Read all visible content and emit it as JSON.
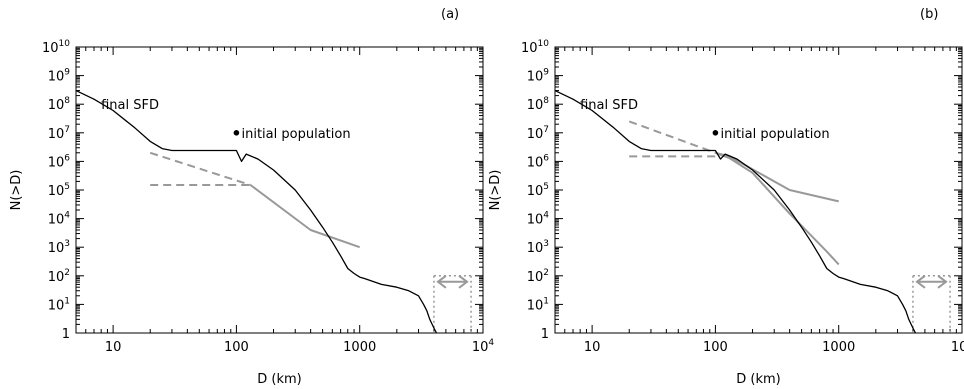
{
  "figure": {
    "colors": {
      "final": "#000000",
      "models": "#999999",
      "marker": "#000000"
    },
    "line_styles": [
      "solid-black",
      "solid-gray",
      "dashed-gray",
      "dotted-gray"
    ],
    "icon_names": [
      "double-arrow-icon",
      "point-marker-icon"
    ]
  },
  "chart_data": [
    {
      "type": "line",
      "panel_label": "(a)",
      "xlabel": "D (km)",
      "ylabel": "N(>D)",
      "xscale": "log",
      "yscale": "log",
      "xlim": [
        5,
        10000
      ],
      "ylim": [
        1,
        10000000000
      ],
      "x_ticklabels": [
        "10",
        "100",
        "1000",
        "10^4"
      ],
      "y_ticklabels": [
        "1",
        "10^1",
        "10^2",
        "10^3",
        "10^4",
        "10^5",
        "10^6",
        "10^7",
        "10^8",
        "10^9",
        "10^10"
      ],
      "grid": false,
      "annotations": [
        {
          "text": "final SFD",
          "x": 10,
          "y": 100000000
        },
        {
          "text": "initial population",
          "x": 110,
          "y": 10000000
        }
      ],
      "series": [
        {
          "style": "solid-black",
          "x": [
            5,
            7,
            10,
            15,
            20,
            25,
            30,
            50,
            80,
            100,
            110,
            120,
            150,
            200,
            300,
            400,
            500,
            600,
            700,
            800,
            900,
            1000,
            1100,
            1500,
            2000,
            2500,
            3000,
            3300,
            3500,
            3700,
            4000,
            4200
          ],
          "y": [
            300000000,
            150000000,
            60000000,
            15000000,
            5000000,
            2800000,
            2400000,
            2400000,
            2400000,
            2400000,
            1000000,
            1800000,
            1200000,
            500000,
            100000,
            20000,
            5000,
            1500,
            500,
            180,
            120,
            90,
            80,
            50,
            40,
            30,
            20,
            10,
            6,
            3,
            1.5,
            1
          ]
        },
        {
          "style": "solid-gray",
          "x": [
            130,
            400,
            1000
          ],
          "y": [
            150000,
            4000,
            1000
          ]
        },
        {
          "style": "dashed-gray",
          "x": [
            20,
            130
          ],
          "y": [
            2000000,
            150000
          ]
        },
        {
          "style": "dashed-gray",
          "x": [
            20,
            130
          ],
          "y": [
            150000,
            150000
          ]
        }
      ],
      "markers": [
        {
          "x": 100,
          "y": 10000000
        }
      ],
      "range_band": {
        "x": [
          4000,
          8000
        ],
        "y": [
          1,
          100
        ]
      }
    },
    {
      "type": "line",
      "panel_label": "(b)",
      "xlabel": "D (km)",
      "ylabel": "N(>D)",
      "xscale": "log",
      "yscale": "log",
      "xlim": [
        5,
        10000
      ],
      "ylim": [
        1,
        10000000000
      ],
      "x_ticklabels": [
        "10",
        "100",
        "1000",
        "10^4"
      ],
      "y_ticklabels": [
        "1",
        "10^1",
        "10^2",
        "10^3",
        "10^4",
        "10^5",
        "10^6",
        "10^7",
        "10^8",
        "10^9",
        "10^10"
      ],
      "grid": false,
      "annotations": [
        {
          "text": "final SFD",
          "x": 10,
          "y": 100000000
        },
        {
          "text": "initial population",
          "x": 110,
          "y": 10000000
        }
      ],
      "series": [
        {
          "style": "solid-black",
          "x": [
            5,
            7,
            10,
            15,
            20,
            25,
            30,
            50,
            80,
            100,
            110,
            120,
            150,
            200,
            300,
            400,
            500,
            600,
            700,
            800,
            900,
            1000,
            1100,
            1500,
            2000,
            2500,
            3000,
            3300,
            3500,
            3700,
            4000,
            4200
          ],
          "y": [
            300000000,
            150000000,
            60000000,
            15000000,
            5000000,
            2800000,
            2400000,
            2400000,
            2400000,
            2400000,
            1200000,
            1800000,
            1200000,
            500000,
            100000,
            20000,
            5000,
            1500,
            500,
            180,
            120,
            90,
            80,
            50,
            40,
            30,
            20,
            10,
            6,
            3,
            1.5,
            1
          ]
        },
        {
          "style": "solid-gray",
          "x": [
            100,
            130,
            400,
            1000
          ],
          "y": [
            2000000,
            1500000,
            100000,
            40000
          ]
        },
        {
          "style": "solid-gray",
          "x": [
            100,
            130,
            200,
            400,
            600,
            800,
            1000
          ],
          "y": [
            2000000,
            1300000,
            400000,
            15000,
            2500,
            700,
            250
          ]
        },
        {
          "style": "dashed-gray",
          "x": [
            20,
            100
          ],
          "y": [
            25000000,
            2000000
          ]
        },
        {
          "style": "dashed-gray",
          "x": [
            20,
            100
          ],
          "y": [
            1500000,
            1500000
          ]
        }
      ],
      "markers": [
        {
          "x": 100,
          "y": 10000000
        }
      ],
      "range_band": {
        "x": [
          4000,
          8000
        ],
        "y": [
          1,
          100
        ]
      }
    }
  ]
}
